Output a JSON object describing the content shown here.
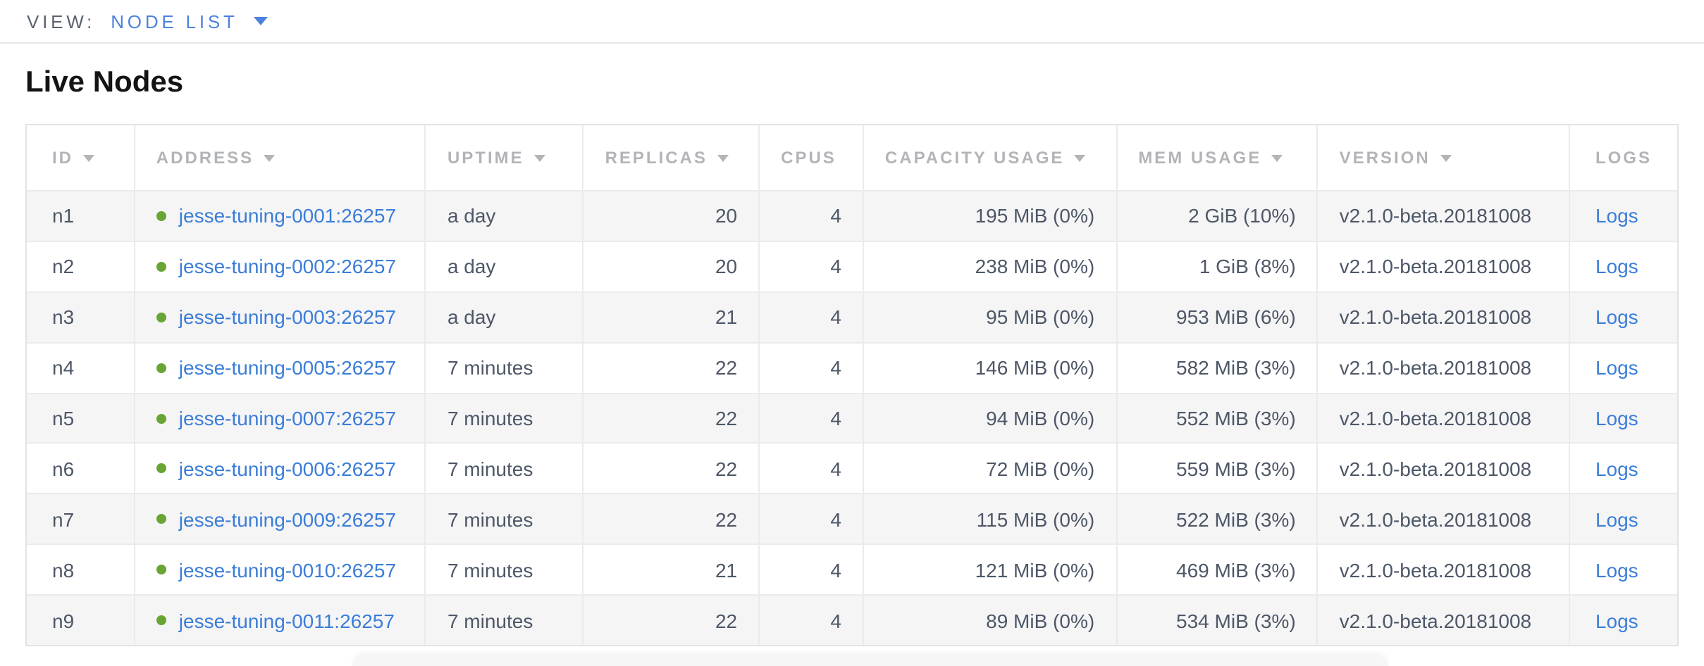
{
  "view_bar": {
    "label": "VIEW:",
    "selected": "NODE LIST"
  },
  "page": {
    "title": "Live Nodes"
  },
  "table": {
    "headers": {
      "id": "ID",
      "address": "ADDRESS",
      "uptime": "UPTIME",
      "replicas": "REPLICAS",
      "cpus": "CPUS",
      "capacity": "CAPACITY USAGE",
      "mem": "MEM USAGE",
      "version": "VERSION",
      "logs": "LOGS"
    },
    "rows": [
      {
        "id": "n1",
        "address": "jesse-tuning-0001:26257",
        "status": "live",
        "uptime": "a day",
        "replicas": "20",
        "cpus": "4",
        "capacity": "195 MiB (0%)",
        "mem": "2 GiB (10%)",
        "version": "v2.1.0-beta.20181008",
        "logs": "Logs"
      },
      {
        "id": "n2",
        "address": "jesse-tuning-0002:26257",
        "status": "live",
        "uptime": "a day",
        "replicas": "20",
        "cpus": "4",
        "capacity": "238 MiB (0%)",
        "mem": "1 GiB (8%)",
        "version": "v2.1.0-beta.20181008",
        "logs": "Logs"
      },
      {
        "id": "n3",
        "address": "jesse-tuning-0003:26257",
        "status": "live",
        "uptime": "a day",
        "replicas": "21",
        "cpus": "4",
        "capacity": "95 MiB (0%)",
        "mem": "953 MiB (6%)",
        "version": "v2.1.0-beta.20181008",
        "logs": "Logs"
      },
      {
        "id": "n4",
        "address": "jesse-tuning-0005:26257",
        "status": "live",
        "uptime": "7 minutes",
        "replicas": "22",
        "cpus": "4",
        "capacity": "146 MiB (0%)",
        "mem": "582 MiB (3%)",
        "version": "v2.1.0-beta.20181008",
        "logs": "Logs"
      },
      {
        "id": "n5",
        "address": "jesse-tuning-0007:26257",
        "status": "live",
        "uptime": "7 minutes",
        "replicas": "22",
        "cpus": "4",
        "capacity": "94 MiB (0%)",
        "mem": "552 MiB (3%)",
        "version": "v2.1.0-beta.20181008",
        "logs": "Logs"
      },
      {
        "id": "n6",
        "address": "jesse-tuning-0006:26257",
        "status": "live",
        "uptime": "7 minutes",
        "replicas": "22",
        "cpus": "4",
        "capacity": "72 MiB (0%)",
        "mem": "559 MiB (3%)",
        "version": "v2.1.0-beta.20181008",
        "logs": "Logs"
      },
      {
        "id": "n7",
        "address": "jesse-tuning-0009:26257",
        "status": "live",
        "uptime": "7 minutes",
        "replicas": "22",
        "cpus": "4",
        "capacity": "115 MiB (0%)",
        "mem": "522 MiB (3%)",
        "version": "v2.1.0-beta.20181008",
        "logs": "Logs"
      },
      {
        "id": "n8",
        "address": "jesse-tuning-0010:26257",
        "status": "live",
        "uptime": "7 minutes",
        "replicas": "21",
        "cpus": "4",
        "capacity": "121 MiB (0%)",
        "mem": "469 MiB (3%)",
        "version": "v2.1.0-beta.20181008",
        "logs": "Logs"
      },
      {
        "id": "n9",
        "address": "jesse-tuning-0011:26257",
        "status": "live",
        "uptime": "7 minutes",
        "replicas": "22",
        "cpus": "4",
        "capacity": "89 MiB (0%)",
        "mem": "534 MiB (3%)",
        "version": "v2.1.0-beta.20181008",
        "logs": "Logs"
      }
    ]
  },
  "colors": {
    "link_blue": "#3b7dd8",
    "viewbar_blue": "#4d82de",
    "live_dot_green": "#68a534",
    "header_gray": "#b2b4b8",
    "cell_text": "#4d5767",
    "row_alt_bg": "#f5f5f6"
  }
}
